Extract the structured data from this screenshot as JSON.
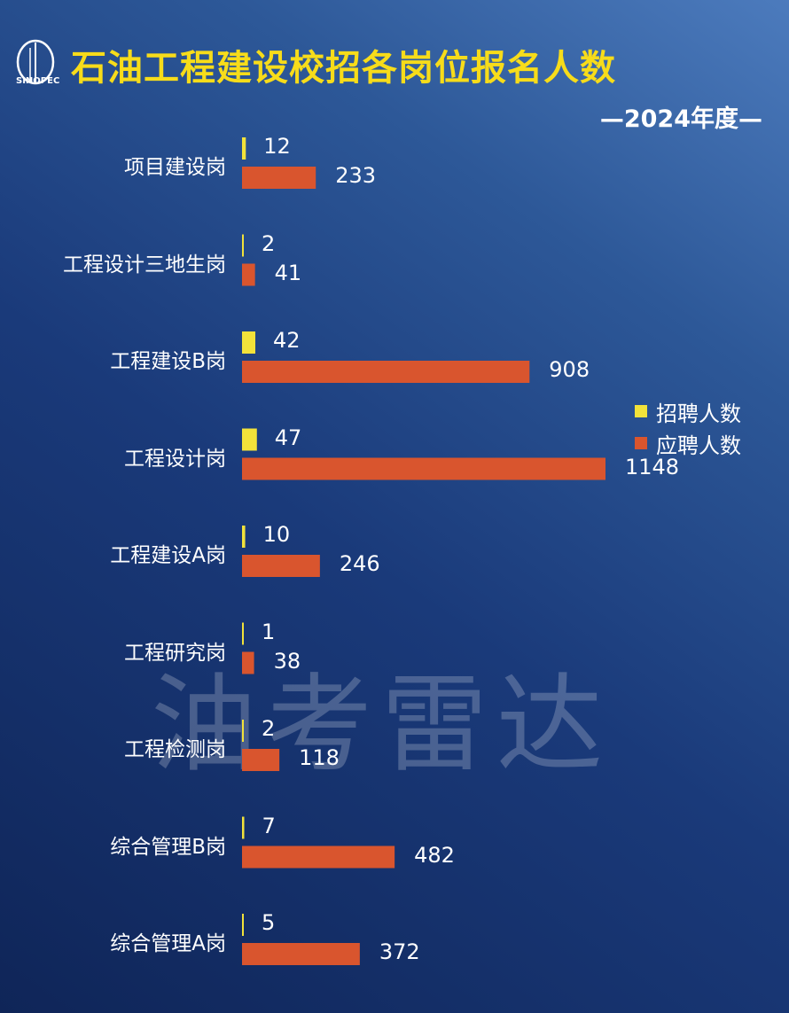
{
  "header": {
    "title": "石油工程建设校招各岗位报名人数",
    "subtitle": "—2024年度—",
    "logo_text": "SINOPEC",
    "watermark": "油考雷达"
  },
  "colors": {
    "recruit": "#f2e23a",
    "applicants": "#d9552e"
  },
  "chart_data": {
    "type": "bar",
    "orientation": "horizontal",
    "title": "石油工程建设校招各岗位报名人数",
    "subtitle": "2024年度",
    "categories": [
      "项目建设岗",
      "工程设计三地生岗",
      "工程建设B岗",
      "工程设计岗",
      "工程建设A岗",
      "工程研究岗",
      "工程检测岗",
      "综合管理B岗",
      "综合管理A岗"
    ],
    "series": [
      {
        "name": "招聘人数",
        "values": [
          12,
          2,
          42,
          47,
          10,
          1,
          2,
          7,
          5
        ]
      },
      {
        "name": "应聘人数",
        "values": [
          233,
          41,
          908,
          1148,
          246,
          38,
          118,
          482,
          372
        ]
      }
    ],
    "xlim": [
      0,
      1148
    ],
    "grid": false,
    "legend": "right",
    "data_labels": true
  }
}
